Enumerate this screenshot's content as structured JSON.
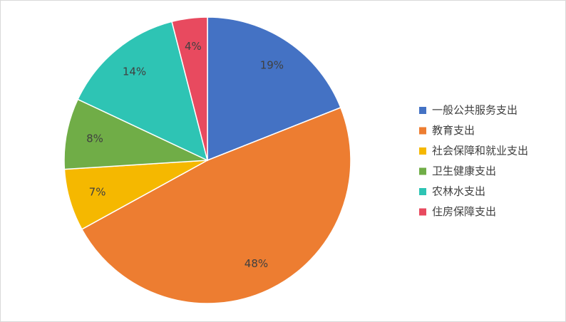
{
  "chart_data": {
    "type": "pie",
    "categories": [
      "一般公共服务支出",
      "教育支出",
      "社会保障和就业支出",
      "卫生健康支出",
      "农林水支出",
      "住房保障支出"
    ],
    "values": [
      19,
      48,
      7,
      8,
      14,
      4
    ],
    "value_labels": [
      "19%",
      "48%",
      "7%",
      "8%",
      "14%",
      "4%"
    ],
    "colors": [
      "#4472c4",
      "#ed7d31",
      "#f5b800",
      "#70ad47",
      "#2ec4b4",
      "#e84a5f"
    ],
    "legend": "right"
  }
}
